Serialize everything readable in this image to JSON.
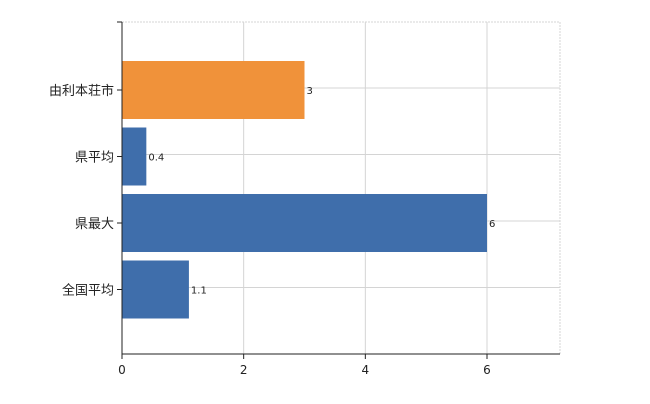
{
  "chart_data": {
    "type": "bar",
    "orientation": "horizontal",
    "categories": [
      "由利本荘市",
      "県平均",
      "県最大",
      "全国平均"
    ],
    "values": [
      3,
      0.4,
      6,
      1.1
    ],
    "value_labels": [
      "3",
      "0.4",
      "6",
      "1.1"
    ],
    "bar_colors": [
      "#f0923a",
      "#3f6eab",
      "#3f6eab",
      "#3f6eab"
    ],
    "xlim": [
      0,
      7.2
    ],
    "xticks": [
      0,
      2,
      4,
      6
    ],
    "xtick_labels": [
      "0",
      "2",
      "4",
      "6"
    ],
    "grid": true,
    "legend": "none"
  }
}
